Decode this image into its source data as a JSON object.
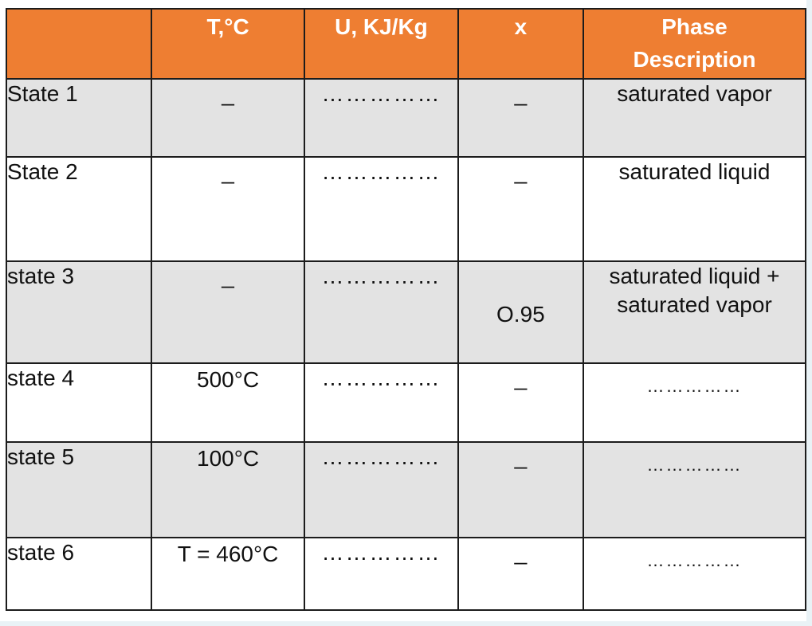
{
  "table": {
    "headers": {
      "state": "",
      "temperature": "T,°C",
      "energy": "U, KJ/Kg",
      "quality": "x",
      "phase_line1": "Phase",
      "phase_line2": "Description"
    },
    "rows": [
      {
        "state": "State 1",
        "temperature": "_",
        "energy": "……………",
        "quality": "_",
        "phase_line1": "saturated vapor",
        "phase_line2": ""
      },
      {
        "state": "State 2",
        "temperature": "_",
        "energy": "……………",
        "quality": "_",
        "phase_line1": "saturated liquid",
        "phase_line2": ""
      },
      {
        "state": "state 3",
        "temperature": "_",
        "energy": "……………",
        "quality": "O.95",
        "phase_line1": "saturated liquid +",
        "phase_line2": "saturated vapor"
      },
      {
        "state": "state 4",
        "temperature": "500°C",
        "energy": "……………",
        "quality": "_",
        "phase_line1": "……………",
        "phase_line2": ""
      },
      {
        "state": "state 5",
        "temperature": "100°C",
        "energy": "……………",
        "quality": "_",
        "phase_line1": "……………",
        "phase_line2": ""
      },
      {
        "state": "state 6",
        "temperature": "T = 460°C",
        "energy": "……………",
        "quality": "_",
        "phase_line1": "……………",
        "phase_line2": ""
      }
    ]
  }
}
